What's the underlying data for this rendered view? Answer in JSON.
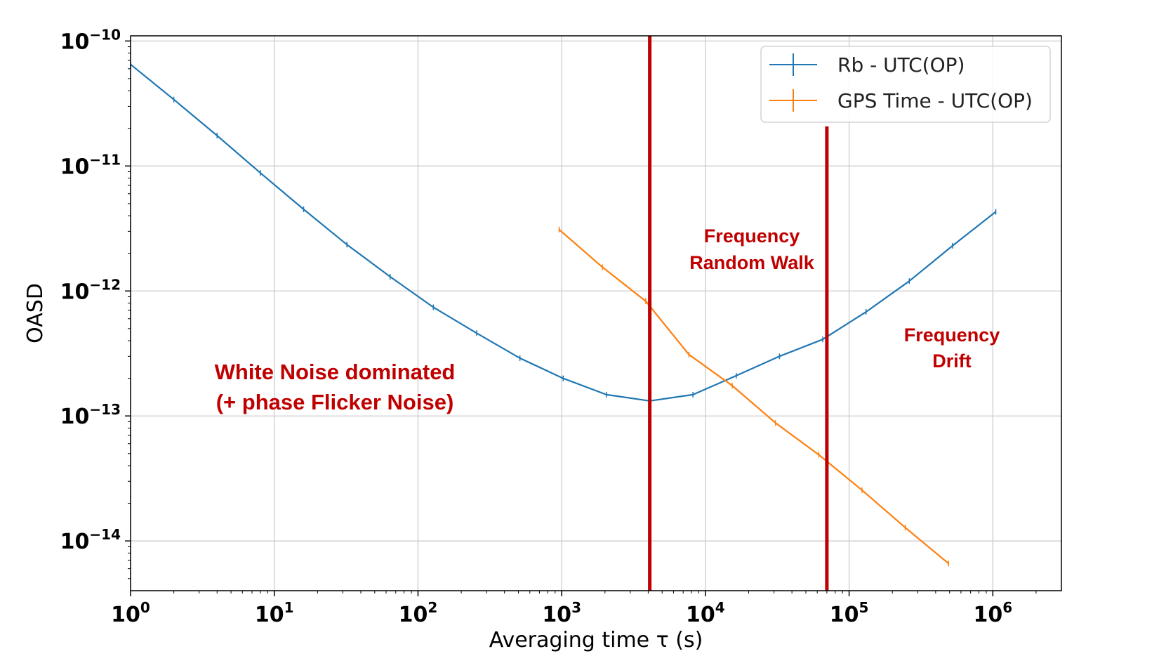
{
  "chart_data": {
    "type": "line",
    "title": "",
    "xlabel": "Averaging time τ (s)",
    "ylabel": "OASD",
    "xscale": "log",
    "yscale": "log",
    "xlim": [
      1,
      3000000
    ],
    "ylim": [
      4e-15,
      1.1e-10
    ],
    "grid": true,
    "legend_position": "top-right",
    "x_ticks": [
      {
        "base": "10",
        "exp": "0",
        "value": 1
      },
      {
        "base": "10",
        "exp": "1",
        "value": 10
      },
      {
        "base": "10",
        "exp": "2",
        "value": 100
      },
      {
        "base": "10",
        "exp": "3",
        "value": 1000
      },
      {
        "base": "10",
        "exp": "4",
        "value": 10000
      },
      {
        "base": "10",
        "exp": "5",
        "value": 100000
      },
      {
        "base": "10",
        "exp": "6",
        "value": 1000000
      }
    ],
    "y_ticks": [
      {
        "base": "10",
        "exp": "−10",
        "value": 1e-10
      },
      {
        "base": "10",
        "exp": "−11",
        "value": 1e-11
      },
      {
        "base": "10",
        "exp": "−12",
        "value": 1e-12
      },
      {
        "base": "10",
        "exp": "−13",
        "value": 1e-13
      },
      {
        "base": "10",
        "exp": "−14",
        "value": 1e-14
      }
    ],
    "series": [
      {
        "name": "Rb - UTC(OP)",
        "color": "#1f77b4",
        "x": [
          1,
          2,
          4,
          8,
          16,
          32,
          64,
          128,
          256,
          512,
          1024,
          2048,
          4096,
          8192,
          16384,
          32768,
          65536,
          131072,
          262144,
          524288,
          1048576
        ],
        "y": [
          6.5e-11,
          3.4e-11,
          1.75e-11,
          8.8e-12,
          4.5e-12,
          2.35e-12,
          1.3e-12,
          7.4e-13,
          4.6e-13,
          2.9e-13,
          2e-13,
          1.48e-13,
          1.32e-13,
          1.48e-13,
          2.1e-13,
          3e-13,
          4.1e-13,
          6.8e-13,
          1.2e-12,
          2.3e-12,
          4.3e-12
        ]
      },
      {
        "name": "GPS Time - UTC(OP)",
        "color": "#ff7f0e",
        "x": [
          960,
          1920,
          3840,
          7680,
          15360,
          30720,
          61440,
          122880,
          245760,
          491520
        ],
        "y": [
          3.1e-12,
          1.55e-12,
          8.3e-13,
          3.1e-13,
          1.75e-13,
          8.8e-14,
          4.9e-14,
          2.55e-14,
          1.28e-14,
          6.6e-15
        ]
      }
    ],
    "vertical_lines": [
      {
        "x": 4100,
        "color": "#c00000"
      },
      {
        "x": 70000,
        "color": "#c00000"
      }
    ],
    "annotations": [
      {
        "lines": [
          "White Noise dominated",
          "(+ phase Flicker Noise)"
        ]
      },
      {
        "lines": [
          "Frequency",
          "Random Walk"
        ]
      },
      {
        "lines": [
          "Frequency",
          "Drift"
        ]
      }
    ]
  }
}
